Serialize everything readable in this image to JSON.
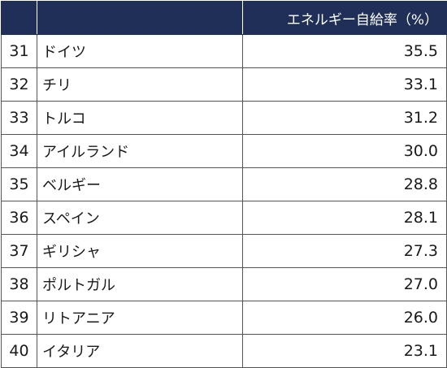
{
  "table": {
    "headers": {
      "rank": "",
      "country": "",
      "value": "エネルギー自給率（%）"
    },
    "rows": [
      {
        "rank": "31",
        "country": "ドイツ",
        "value": "35.5"
      },
      {
        "rank": "32",
        "country": "チリ",
        "value": "33.1"
      },
      {
        "rank": "33",
        "country": "トルコ",
        "value": "31.2"
      },
      {
        "rank": "34",
        "country": "アイルランド",
        "value": "30.0"
      },
      {
        "rank": "35",
        "country": "ベルギー",
        "value": "28.8"
      },
      {
        "rank": "36",
        "country": "スペイン",
        "value": "28.1"
      },
      {
        "rank": "37",
        "country": "ギリシャ",
        "value": "27.3"
      },
      {
        "rank": "38",
        "country": "ポルトガル",
        "value": "27.0"
      },
      {
        "rank": "39",
        "country": "リトアニア",
        "value": "26.0"
      },
      {
        "rank": "40",
        "country": "イタリア",
        "value": "23.1"
      }
    ]
  },
  "colors": {
    "header_background": "#1f2f57",
    "header_text": "#ffffff",
    "grid_line": "#555555"
  }
}
